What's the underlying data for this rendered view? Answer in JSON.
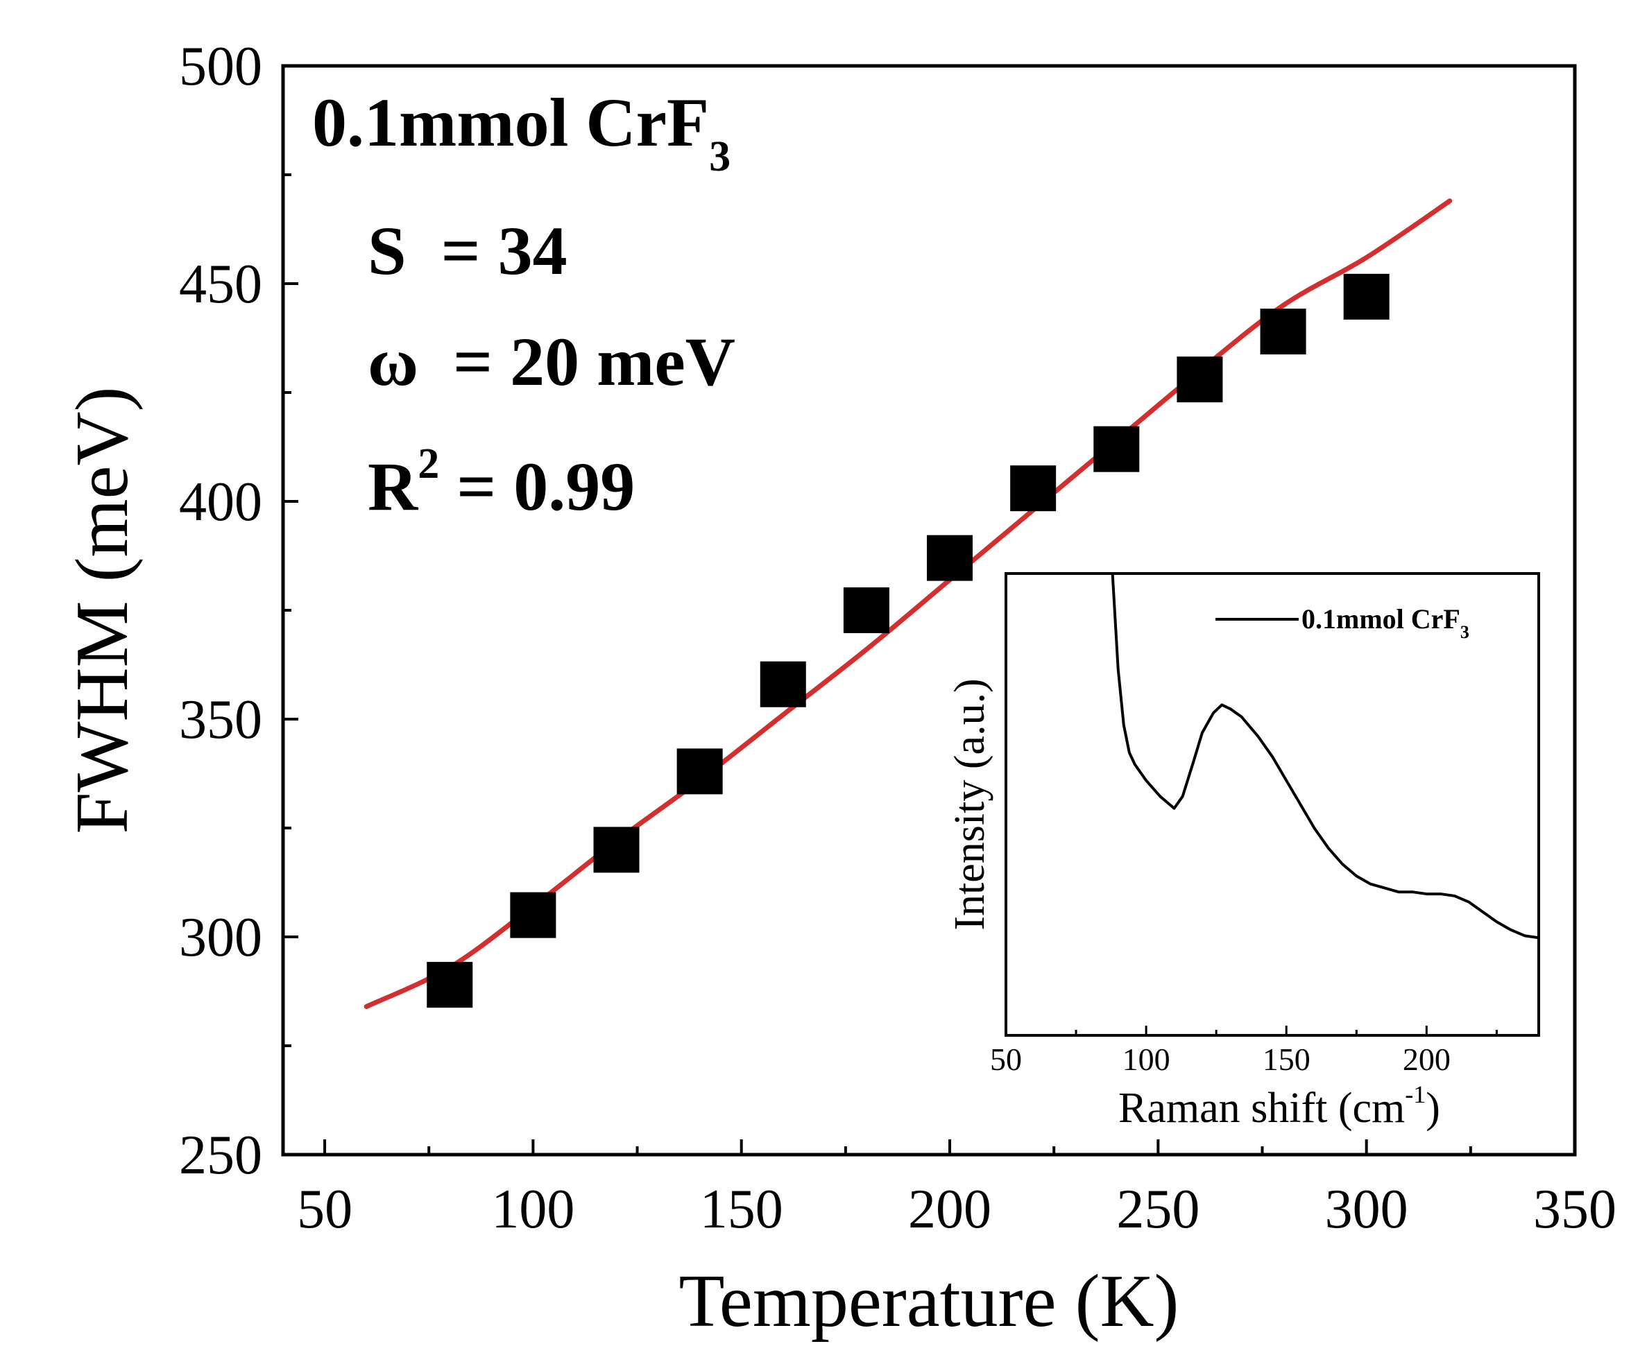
{
  "colors": {
    "fit_line": "#d32f2f",
    "markers": "#000000",
    "inset_line": "#000000",
    "axes": "#000000",
    "background": "#ffffff"
  },
  "annotations": {
    "sample_main": "0.1mmol CrF",
    "sample_sub": "3",
    "s_param": "S  = 34",
    "omega_param": "ω  = 20 meV",
    "r_main": "R",
    "r_sup": "2",
    "r_value": " = 0.99"
  },
  "chart_data": [
    {
      "type": "scatter",
      "title": "",
      "xlabel": "Temperature (K)",
      "ylabel": "FWHM (meV)",
      "xlim": [
        40,
        350
      ],
      "ylim": [
        250,
        500
      ],
      "x_ticks": [
        50,
        100,
        150,
        200,
        250,
        300,
        350
      ],
      "y_ticks": [
        250,
        300,
        350,
        400,
        450,
        500
      ],
      "x_tick_labels": [
        "50",
        "100",
        "150",
        "200",
        "250",
        "300",
        "350"
      ],
      "y_tick_labels": [
        "250",
        "300",
        "350",
        "400",
        "450",
        "500"
      ],
      "grid": false,
      "legend": false,
      "series": [
        {
          "kind": "markers",
          "marker": "square",
          "x": [
            80,
            100,
            120,
            140,
            160,
            180,
            200,
            220,
            240,
            260,
            280,
            300
          ],
          "y": [
            289,
            305,
            320,
            338,
            358,
            375,
            387,
            403,
            412,
            428,
            439,
            447
          ]
        },
        {
          "kind": "fit-line",
          "x": [
            60,
            80,
            100,
            120,
            140,
            160,
            180,
            200,
            220,
            240,
            260,
            280,
            300,
            320
          ],
          "y": [
            284,
            293,
            307,
            322,
            336,
            351,
            366,
            382,
            398,
            414,
            430,
            445,
            456,
            469
          ]
        }
      ]
    },
    {
      "type": "line",
      "title": "",
      "xlabel": "Raman shift (cm",
      "xlabel_sup": "-1",
      "xlabel_end": ")",
      "ylabel": "Intensity (a.u.)",
      "xlim": [
        50,
        240
      ],
      "x_ticks": [
        50,
        100,
        150,
        200
      ],
      "x_tick_labels": [
        "50",
        "100",
        "150",
        "200"
      ],
      "y_ticks_shown": false,
      "ylim": [
        0,
        100
      ],
      "grid": false,
      "legend_position": "top-right",
      "series": [
        {
          "name": "0.1mmol CrF",
          "name_sub": "3",
          "x": [
            88,
            89,
            90,
            92,
            94,
            96,
            100,
            105,
            110,
            113,
            117,
            120,
            124,
            127,
            130,
            134,
            140,
            145,
            150,
            155,
            160,
            165,
            170,
            175,
            180,
            185,
            190,
            195,
            200,
            205,
            210,
            215,
            220,
            225,
            230,
            235,
            240
          ],
          "y": [
            100,
            88,
            76,
            62,
            55,
            52,
            48,
            44,
            41,
            44,
            53,
            60,
            65,
            67,
            66,
            64,
            59,
            54,
            48,
            42,
            36,
            31,
            27,
            24,
            22,
            21,
            20,
            20,
            19.5,
            19.5,
            19,
            17.5,
            15,
            12.5,
            10.5,
            9,
            8.5
          ]
        }
      ]
    }
  ]
}
